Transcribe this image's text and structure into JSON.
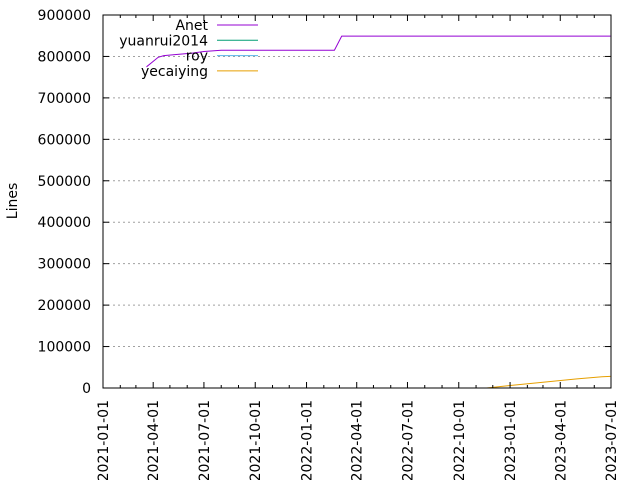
{
  "chart_data": {
    "type": "line",
    "ylabel": "Lines",
    "ylim": [
      0,
      900000
    ],
    "yticks": [
      "0",
      "100000",
      "200000",
      "300000",
      "400000",
      "500000",
      "600000",
      "700000",
      "800000",
      "900000"
    ],
    "yticks_values": [
      0,
      100000,
      200000,
      300000,
      400000,
      500000,
      600000,
      700000,
      800000,
      900000
    ],
    "xlim": [
      "2021-01-01",
      "2023-07-01"
    ],
    "xticks": [
      "2021-01-01",
      "2021-04-01",
      "2021-07-01",
      "2021-10-01",
      "2022-01-01",
      "2022-04-01",
      "2022-07-01",
      "2022-10-01",
      "2023-01-01",
      "2023-04-01",
      "2023-07-01"
    ],
    "grid": "horizontal dotted",
    "legend_position": "top-left",
    "series": [
      {
        "name": "Anet",
        "color": "#9400d3",
        "points": [
          [
            "2021-03-20",
            775000
          ],
          [
            "2021-04-01",
            788000
          ],
          [
            "2021-04-10",
            798000
          ],
          [
            "2021-04-20",
            802000
          ],
          [
            "2021-05-15",
            805000
          ],
          [
            "2021-06-10",
            808000
          ],
          [
            "2021-07-01",
            812000
          ],
          [
            "2021-08-01",
            815000
          ],
          [
            "2022-02-20",
            815000
          ],
          [
            "2022-03-05",
            849000
          ],
          [
            "2023-06-30",
            849000
          ]
        ]
      },
      {
        "name": "yuanrui2014",
        "color": "#009e73",
        "points": []
      },
      {
        "name": "roy",
        "color": "#56b4e9",
        "points": []
      },
      {
        "name": "yecaiying",
        "color": "#e69f00",
        "points": [
          [
            "2022-11-20",
            0
          ],
          [
            "2023-01-01",
            6000
          ],
          [
            "2023-03-01",
            14000
          ],
          [
            "2023-05-01",
            22000
          ],
          [
            "2023-06-15",
            27000
          ],
          [
            "2023-06-30",
            28000
          ]
        ]
      }
    ]
  }
}
